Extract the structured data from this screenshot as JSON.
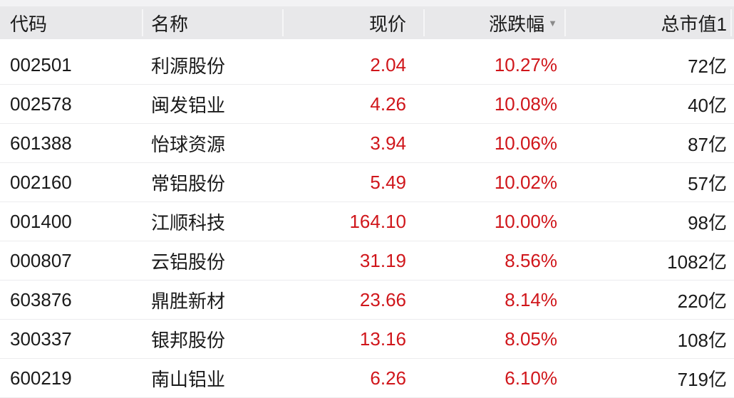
{
  "header": {
    "code": "代码",
    "name": "名称",
    "price": "现价",
    "change": "涨跌幅",
    "sort_icon": "triangle-down",
    "cap": "总市值1"
  },
  "colors": {
    "up": "#d0161b",
    "header_bg": "#e8e8ea"
  },
  "rows": [
    {
      "code": "002501",
      "name": "利源股份",
      "price": "2.04",
      "change": "10.27%",
      "cap": "72亿"
    },
    {
      "code": "002578",
      "name": "闽发铝业",
      "price": "4.26",
      "change": "10.08%",
      "cap": "40亿"
    },
    {
      "code": "601388",
      "name": "怡球资源",
      "price": "3.94",
      "change": "10.06%",
      "cap": "87亿"
    },
    {
      "code": "002160",
      "name": "常铝股份",
      "price": "5.49",
      "change": "10.02%",
      "cap": "57亿"
    },
    {
      "code": "001400",
      "name": "江顺科技",
      "price": "164.10",
      "change": "10.00%",
      "cap": "98亿"
    },
    {
      "code": "000807",
      "name": "云铝股份",
      "price": "31.19",
      "change": "8.56%",
      "cap": "1082亿"
    },
    {
      "code": "603876",
      "name": "鼎胜新材",
      "price": "23.66",
      "change": "8.14%",
      "cap": "220亿"
    },
    {
      "code": "300337",
      "name": "银邦股份",
      "price": "13.16",
      "change": "8.05%",
      "cap": "108亿"
    },
    {
      "code": "600219",
      "name": "南山铝业",
      "price": "6.26",
      "change": "6.10%",
      "cap": "719亿"
    }
  ]
}
